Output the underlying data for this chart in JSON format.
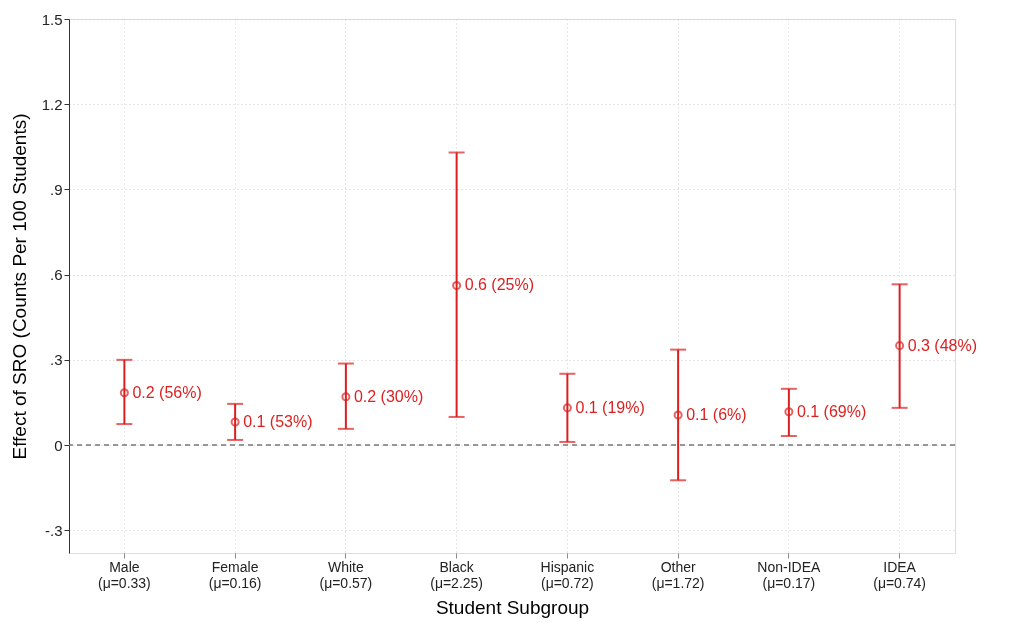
{
  "chart_data": {
    "type": "scatter",
    "xlabel": "Student Subgroup",
    "ylabel": "Effect of SRO (Counts Per 100 Students)",
    "categories": [
      "Male (μ=0.33)",
      "Female (μ=0.16)",
      "White (μ=0.57)",
      "Black (μ=2.25)",
      "Hispanic (μ=0.72)",
      "Other (μ=1.72)",
      "Non-IDEA (μ=0.17)",
      "IDEA (μ=0.74)"
    ],
    "series": [
      {
        "color": "#dc1f1f",
        "values": [
          0.184,
          0.081,
          0.17,
          0.562,
          0.131,
          0.106,
          0.117,
          0.35
        ],
        "errors": [
          [
            0.074,
            0.3
          ],
          [
            0.018,
            0.145
          ],
          [
            0.057,
            0.287
          ],
          [
            0.099,
            1.03
          ],
          [
            0.011,
            0.251
          ],
          [
            -0.124,
            0.336
          ],
          [
            0.032,
            0.198
          ],
          [
            0.131,
            0.566
          ]
        ],
        "value_labels": [
          "0.2 (56%)",
          "0.1 (53%)",
          "0.2 (30%)",
          "0.6 (25%)",
          "0.1 (19%)",
          "0.1 (6%)",
          "0.1 (69%)",
          "0.3 (48%)"
        ]
      }
    ],
    "ylim": [
      -0.38,
      1.5
    ],
    "yticks": [
      {
        "value": -0.3,
        "label": "-.3"
      },
      0,
      {
        "value": 0.3,
        "label": ".3"
      },
      {
        "value": 0.6,
        "label": ".6"
      },
      {
        "value": 0.9,
        "label": ".9"
      },
      {
        "value": 1.2,
        "label": "1.2"
      },
      {
        "value": 1.5,
        "label": "1.5"
      }
    ],
    "ref_lines": [
      {
        "axis": "y",
        "value": 0,
        "label": null,
        "color": "#777777",
        "line_style": "dashed"
      }
    ],
    "grid": true,
    "marker": "circle"
  }
}
